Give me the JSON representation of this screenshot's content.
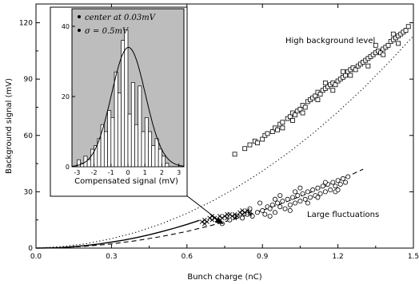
{
  "chart_data": {
    "type": "scatter",
    "title": "",
    "xlabel": "Bunch charge (nC)",
    "ylabel": "Background signal (mV)",
    "xlim": [
      0.0,
      1.5
    ],
    "ylim": [
      0,
      130
    ],
    "x_ticks": [
      "0.0",
      "0.3",
      "0.6",
      "0.9",
      "1.2",
      "1.5"
    ],
    "y_ticks": [
      "0",
      "30",
      "60",
      "90",
      "120"
    ],
    "annotations": [
      "High background level",
      "Large fluctuations"
    ],
    "series": [
      {
        "marker": "square",
        "points": [
          [
            0.79,
            50
          ],
          [
            0.83,
            53
          ],
          [
            0.85,
            55
          ],
          [
            0.87,
            57
          ],
          [
            0.88,
            56
          ],
          [
            0.9,
            58
          ],
          [
            0.91,
            60
          ],
          [
            0.92,
            61
          ],
          [
            0.94,
            62
          ],
          [
            0.95,
            64
          ],
          [
            0.96,
            63
          ],
          [
            0.97,
            66
          ],
          [
            0.98,
            67
          ],
          [
            1.0,
            69
          ],
          [
            1.01,
            70
          ],
          [
            1.02,
            72
          ],
          [
            1.03,
            71
          ],
          [
            1.04,
            73
          ],
          [
            1.05,
            74
          ],
          [
            1.06,
            76
          ],
          [
            1.07,
            75
          ],
          [
            1.08,
            78
          ],
          [
            1.09,
            79
          ],
          [
            1.1,
            80
          ],
          [
            1.11,
            81
          ],
          [
            1.12,
            83
          ],
          [
            1.13,
            82
          ],
          [
            1.14,
            84
          ],
          [
            1.15,
            85
          ],
          [
            1.16,
            86
          ],
          [
            1.17,
            87
          ],
          [
            1.18,
            88
          ],
          [
            1.19,
            87
          ],
          [
            1.2,
            89
          ],
          [
            1.21,
            90
          ],
          [
            1.22,
            91
          ],
          [
            1.23,
            92
          ],
          [
            1.24,
            94
          ],
          [
            1.25,
            95
          ],
          [
            1.26,
            96
          ],
          [
            1.27,
            95
          ],
          [
            1.28,
            97
          ],
          [
            1.29,
            98
          ],
          [
            1.3,
            99
          ],
          [
            1.31,
            100
          ],
          [
            1.32,
            101
          ],
          [
            1.33,
            102
          ],
          [
            1.34,
            103
          ],
          [
            1.35,
            104
          ],
          [
            1.36,
            105
          ],
          [
            1.37,
            104
          ],
          [
            1.38,
            106
          ],
          [
            1.39,
            107
          ],
          [
            1.4,
            108
          ],
          [
            1.41,
            110
          ],
          [
            1.42,
            111
          ],
          [
            1.43,
            112
          ],
          [
            1.44,
            113
          ],
          [
            1.45,
            114
          ],
          [
            1.46,
            115
          ],
          [
            1.47,
            116
          ],
          [
            1.48,
            118
          ],
          [
            1.02,
            68
          ],
          [
            1.06,
            72
          ],
          [
            1.12,
            79
          ],
          [
            1.18,
            84
          ],
          [
            1.25,
            92
          ],
          [
            1.32,
            97
          ],
          [
            1.38,
            103
          ],
          [
            1.44,
            109
          ],
          [
            0.98,
            64
          ],
          [
            1.15,
            88
          ],
          [
            1.22,
            94
          ],
          [
            1.35,
            108
          ],
          [
            1.42,
            114
          ]
        ]
      },
      {
        "marker": "circle",
        "points": [
          [
            0.74,
            13
          ],
          [
            0.77,
            15
          ],
          [
            0.8,
            17
          ],
          [
            0.82,
            16
          ],
          [
            0.84,
            18
          ],
          [
            0.86,
            17
          ],
          [
            0.88,
            19
          ],
          [
            0.9,
            20
          ],
          [
            0.91,
            18
          ],
          [
            0.92,
            22
          ],
          [
            0.93,
            21
          ],
          [
            0.94,
            23
          ],
          [
            0.95,
            19
          ],
          [
            0.96,
            24
          ],
          [
            0.97,
            22
          ],
          [
            0.98,
            25
          ],
          [
            0.99,
            21
          ],
          [
            1.0,
            26
          ],
          [
            1.01,
            23
          ],
          [
            1.02,
            27
          ],
          [
            1.03,
            24
          ],
          [
            1.04,
            28
          ],
          [
            1.05,
            25
          ],
          [
            1.06,
            29
          ],
          [
            1.07,
            26
          ],
          [
            1.08,
            30
          ],
          [
            1.09,
            27
          ],
          [
            1.1,
            31
          ],
          [
            1.11,
            28
          ],
          [
            1.12,
            32
          ],
          [
            1.13,
            29
          ],
          [
            1.14,
            33
          ],
          [
            1.15,
            30
          ],
          [
            1.16,
            34
          ],
          [
            1.17,
            31
          ],
          [
            1.18,
            35
          ],
          [
            1.19,
            33
          ],
          [
            1.2,
            36
          ],
          [
            1.21,
            34
          ],
          [
            1.22,
            37
          ],
          [
            1.23,
            35
          ],
          [
            1.24,
            38
          ],
          [
            0.89,
            24
          ],
          [
            0.97,
            28
          ],
          [
            1.05,
            32
          ],
          [
            1.12,
            27
          ],
          [
            1.19,
            30
          ],
          [
            0.85,
            21
          ],
          [
            0.93,
            17
          ],
          [
            1.01,
            20
          ],
          [
            1.08,
            24
          ],
          [
            1.15,
            35
          ],
          [
            1.2,
            31
          ],
          [
            1.03,
            30
          ],
          [
            0.95,
            26
          ]
        ]
      },
      {
        "marker": "cross",
        "points": [
          [
            0.66,
            14
          ],
          [
            0.67,
            15
          ],
          [
            0.68,
            14
          ],
          [
            0.69,
            16
          ],
          [
            0.7,
            15
          ],
          [
            0.71,
            16
          ],
          [
            0.72,
            15
          ],
          [
            0.73,
            17
          ],
          [
            0.74,
            16
          ],
          [
            0.75,
            17
          ],
          [
            0.76,
            16
          ],
          [
            0.77,
            18
          ],
          [
            0.78,
            17
          ],
          [
            0.79,
            18
          ],
          [
            0.8,
            17
          ],
          [
            0.81,
            19
          ],
          [
            0.82,
            18
          ],
          [
            0.83,
            19
          ],
          [
            0.84,
            20
          ],
          [
            0.85,
            19
          ],
          [
            0.67,
            13
          ],
          [
            0.7,
            17
          ],
          [
            0.73,
            14
          ],
          [
            0.76,
            18
          ],
          [
            0.79,
            16
          ],
          [
            0.82,
            20
          ],
          [
            0.85,
            18
          ]
        ]
      }
    ],
    "curves": [
      {
        "style": "solid",
        "x": [
          0.0,
          0.05,
          0.1,
          0.15,
          0.2,
          0.25,
          0.3,
          0.35,
          0.4,
          0.45,
          0.5,
          0.55,
          0.6,
          0.65
        ],
        "y": [
          0,
          0.1,
          0.3,
          0.8,
          1.4,
          2.2,
          3.2,
          4.3,
          5.6,
          7.1,
          8.8,
          10.6,
          12.6,
          14.8
        ]
      },
      {
        "style": "dashed",
        "x": [
          0.0,
          0.1,
          0.2,
          0.3,
          0.4,
          0.5,
          0.6,
          0.7,
          0.8,
          0.9,
          1.0,
          1.1,
          1.2,
          1.3
        ],
        "y": [
          0,
          0.25,
          1.0,
          2.2,
          4.0,
          6.2,
          8.9,
          12.2,
          15.9,
          20.1,
          24.9,
          30.1,
          35.8,
          42.0
        ]
      },
      {
        "style": "dotted",
        "x": [
          0.0,
          0.1,
          0.2,
          0.3,
          0.4,
          0.5,
          0.6,
          0.7,
          0.8,
          0.9,
          1.0,
          1.1,
          1.2,
          1.3,
          1.4,
          1.5
        ],
        "y": [
          0,
          0.8,
          2.4,
          5.0,
          8.5,
          13,
          18.5,
          25,
          32.5,
          41,
          50.5,
          61,
          72.5,
          85,
          98.5,
          113
        ]
      }
    ],
    "inset": {
      "type": "bar",
      "xlabel": "Compensated signal (mV)",
      "x_ticks": [
        "-3",
        "-2",
        "-1",
        "0",
        "1",
        "2",
        "3"
      ],
      "y_ticks": [
        "0",
        "20",
        "40"
      ],
      "xlim": [
        -3.3,
        3.3
      ],
      "ylim": [
        0,
        45
      ],
      "legend": [
        "center at 0.03mV",
        "σ = 0.5mV"
      ],
      "bins": [
        -2.9,
        -2.7,
        -2.5,
        -2.3,
        -2.1,
        -1.9,
        -1.7,
        -1.5,
        -1.3,
        -1.1,
        -0.9,
        -0.7,
        -0.5,
        -0.3,
        -0.1,
        0.1,
        0.3,
        0.5,
        0.7,
        0.9,
        1.1,
        1.3,
        1.5,
        1.7,
        1.9,
        2.1,
        2.3
      ],
      "counts": [
        2,
        1,
        3,
        2,
        5,
        6,
        8,
        12,
        10,
        16,
        14,
        27,
        21,
        36,
        39,
        15,
        24,
        12,
        23,
        10,
        14,
        10,
        6,
        8,
        5,
        3,
        1
      ],
      "gaussian": {
        "center": 0.03,
        "sigma": 0.5,
        "peak": 34
      }
    }
  }
}
